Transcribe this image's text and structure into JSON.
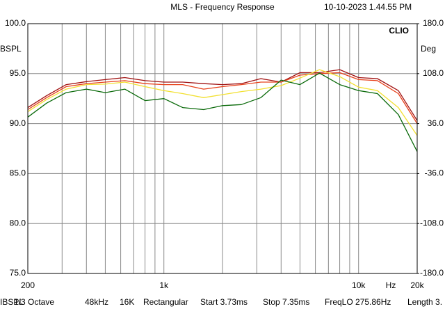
{
  "chart_data": {
    "type": "line",
    "title": "MLS - Frequency Response",
    "timestamp": "10-10-2023 1.44.55 PM",
    "brand": "CLIO",
    "y_label": "BSPL",
    "y2_label": "Deg",
    "x_label": "Hz",
    "x_scale": "log",
    "grid": true,
    "xlim": [
      200,
      20000
    ],
    "xticks": [
      200,
      {
        "value": 1000,
        "label": "1k"
      },
      {
        "value": 10000,
        "label": "10k"
      },
      {
        "value": 20000,
        "label": "20k"
      }
    ],
    "xgrid": [
      300,
      400,
      500,
      600,
      700,
      800,
      900,
      2000,
      3000,
      4000,
      5000,
      6000,
      7000,
      8000,
      9000
    ],
    "ylim": [
      75,
      100
    ],
    "yticks": [
      {
        "value": 75,
        "label": "75.0"
      },
      {
        "value": 80,
        "label": "80.0"
      },
      {
        "value": 85,
        "label": "85.0"
      },
      {
        "value": 90,
        "label": "90.0"
      },
      {
        "value": 95,
        "label": "95.0"
      },
      {
        "value": 100,
        "label": "100.0"
      }
    ],
    "y2lim": [
      -180,
      180
    ],
    "y2ticks": [
      {
        "value": -180,
        "label": "-180.0"
      },
      {
        "value": -108,
        "label": "-108.0"
      },
      {
        "value": -36,
        "label": "-36.0"
      },
      {
        "value": 36,
        "label": "36.0"
      },
      {
        "value": 108,
        "label": "108.0"
      },
      {
        "value": 180,
        "label": "180.0"
      }
    ],
    "x": [
      200,
      250,
      315,
      400,
      500,
      630,
      800,
      1000,
      1250,
      1600,
      2000,
      2500,
      3150,
      4000,
      5000,
      6300,
      8000,
      10000,
      12500,
      16000,
      20000
    ],
    "series": [
      {
        "color": "#a01010",
        "values": [
          91.6,
          92.8,
          93.9,
          94.2,
          94.4,
          94.6,
          94.3,
          94.15,
          94.15,
          94.0,
          93.9,
          94.0,
          94.5,
          94.15,
          95.1,
          95.1,
          95.4,
          94.6,
          94.5,
          93.3,
          90.3
        ]
      },
      {
        "color": "#e8401a",
        "values": [
          91.4,
          92.6,
          93.7,
          94.0,
          94.15,
          94.3,
          94.0,
          93.9,
          93.9,
          93.45,
          93.7,
          93.9,
          94.15,
          94.15,
          94.85,
          95.0,
          95.1,
          94.4,
          94.3,
          93.0,
          90.0
        ]
      },
      {
        "color": "#f2e030",
        "values": [
          91.2,
          92.4,
          93.45,
          93.9,
          93.95,
          94.15,
          93.7,
          93.3,
          93.0,
          92.6,
          92.9,
          93.2,
          93.45,
          93.8,
          94.55,
          95.4,
          94.7,
          93.65,
          93.3,
          91.6,
          88.8
        ]
      },
      {
        "color": "#0a6a0a",
        "values": [
          90.65,
          92.05,
          93.1,
          93.45,
          93.1,
          93.45,
          92.3,
          92.5,
          91.6,
          91.4,
          91.8,
          91.9,
          92.6,
          94.35,
          93.9,
          95.05,
          93.9,
          93.3,
          93.0,
          90.9,
          87.2
        ]
      }
    ],
    "status": [
      "IBSPL",
      "1/3 Octave",
      "48kHz",
      "16K",
      "Rectangular",
      "Start 3.73ms",
      "Stop 7.35ms",
      "FreqLO 275.86Hz",
      "Length 3."
    ]
  }
}
